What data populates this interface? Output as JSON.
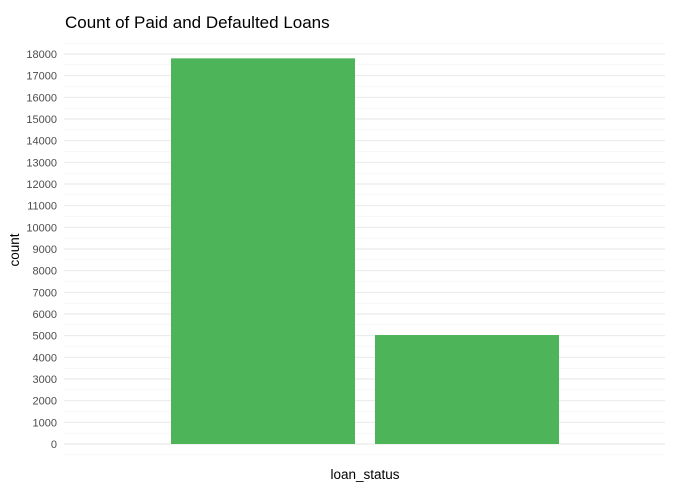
{
  "chart_data": {
    "type": "bar",
    "title": "Count of Paid and Defaulted Loans",
    "xlabel": "loan_status",
    "ylabel": "count",
    "categories": [
      "",
      ""
    ],
    "values": [
      17800,
      5030
    ],
    "ylim": [
      0,
      18000
    ],
    "yticks": [
      0,
      1000,
      2000,
      3000,
      4000,
      5000,
      6000,
      7000,
      8000,
      9000,
      10000,
      11000,
      12000,
      13000,
      14000,
      15000,
      16000,
      17000,
      18000
    ],
    "bar_color": "#4db45a",
    "grid": true,
    "legend": "none"
  }
}
